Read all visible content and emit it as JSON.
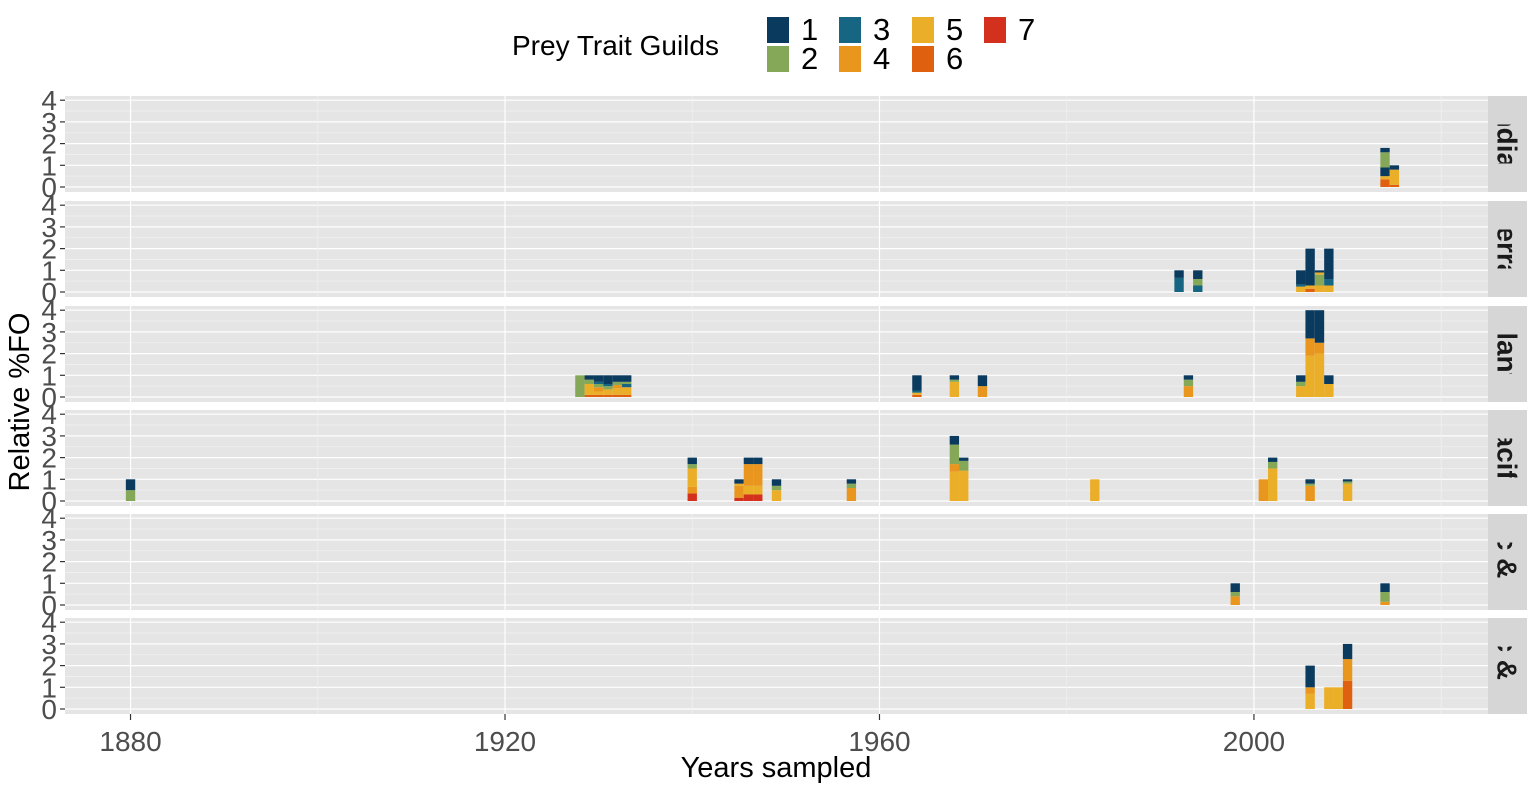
{
  "legend": {
    "title": "Prey Trait Guilds",
    "items": [
      {
        "label": "1",
        "color": "#0a3a5e"
      },
      {
        "label": "2",
        "color": "#84a857"
      },
      {
        "label": "3",
        "color": "#166582"
      },
      {
        "label": "4",
        "color": "#e8961d"
      },
      {
        "label": "5",
        "color": "#ebae28"
      },
      {
        "label": "6",
        "color": "#df600f"
      },
      {
        "label": "7",
        "color": "#d3311e"
      }
    ]
  },
  "chart_data": {
    "type": "bar",
    "stacked": true,
    "xlabel": "Years sampled",
    "ylabel": "Relative %FO",
    "xlim": [
      1873,
      2025
    ],
    "ylim": [
      0,
      4
    ],
    "xticks": [
      1880,
      1920,
      1960,
      2000
    ],
    "yticks": [
      0,
      1,
      2,
      3,
      4
    ],
    "bar_width_years": 1,
    "grid": true,
    "facets": [
      {
        "label": "Indian",
        "bars": [
          {
            "year": 2014,
            "segments": [
              {
                "guild": 6,
                "value": 0.35
              },
              {
                "guild": 5,
                "value": 0.15
              },
              {
                "guild": 1,
                "value": 0.4
              },
              {
                "guild": 2,
                "value": 0.7
              },
              {
                "guild": 1,
                "value": 0.2
              }
            ]
          },
          {
            "year": 2015,
            "segments": [
              {
                "guild": 6,
                "value": 0.1
              },
              {
                "guild": 5,
                "value": 0.7
              },
              {
                "guild": 1,
                "value": 0.2
              }
            ]
          }
        ]
      },
      {
        "label": "Mediterranean",
        "bars": [
          {
            "year": 1992,
            "segments": [
              {
                "guild": 3,
                "value": 0.65
              },
              {
                "guild": 1,
                "value": 0.35
              }
            ]
          },
          {
            "year": 1994,
            "segments": [
              {
                "guild": 3,
                "value": 0.3
              },
              {
                "guild": 2,
                "value": 0.3
              },
              {
                "guild": 1,
                "value": 0.4
              }
            ]
          },
          {
            "year": 2005,
            "segments": [
              {
                "guild": 5,
                "value": 0.25
              },
              {
                "guild": 3,
                "value": 0.1
              },
              {
                "guild": 1,
                "value": 0.65
              }
            ]
          },
          {
            "year": 2006,
            "segments": [
              {
                "guild": 6,
                "value": 0.15
              },
              {
                "guild": 5,
                "value": 0.15
              },
              {
                "guild": 1,
                "value": 1.7
              }
            ]
          },
          {
            "year": 2007,
            "segments": [
              {
                "guild": 5,
                "value": 0.3
              },
              {
                "guild": 2,
                "value": 0.5
              },
              {
                "guild": 5,
                "value": 0.1
              },
              {
                "guild": 1,
                "value": 0.1
              }
            ]
          },
          {
            "year": 2008,
            "segments": [
              {
                "guild": 5,
                "value": 0.3
              },
              {
                "guild": 3,
                "value": 0.3
              },
              {
                "guild": 1,
                "value": 1.4
              }
            ]
          }
        ]
      },
      {
        "label": "Atlantic",
        "bars": [
          {
            "year": 1928,
            "segments": [
              {
                "guild": 2,
                "value": 1.0
              }
            ]
          },
          {
            "year": 1929,
            "segments": [
              {
                "guild": 6,
                "value": 0.1
              },
              {
                "guild": 5,
                "value": 0.5
              },
              {
                "guild": 2,
                "value": 0.2
              },
              {
                "guild": 1,
                "value": 0.2
              }
            ]
          },
          {
            "year": 1930,
            "segments": [
              {
                "guild": 6,
                "value": 0.1
              },
              {
                "guild": 5,
                "value": 0.15
              },
              {
                "guild": 4,
                "value": 0.2
              },
              {
                "guild": 2,
                "value": 0.15
              },
              {
                "guild": 3,
                "value": 0.1
              },
              {
                "guild": 1,
                "value": 0.3
              }
            ]
          },
          {
            "year": 1931,
            "segments": [
              {
                "guild": 6,
                "value": 0.1
              },
              {
                "guild": 5,
                "value": 0.25
              },
              {
                "guild": 2,
                "value": 0.15
              },
              {
                "guild": 3,
                "value": 0.1
              },
              {
                "guild": 1,
                "value": 0.4
              }
            ]
          },
          {
            "year": 1932,
            "segments": [
              {
                "guild": 6,
                "value": 0.1
              },
              {
                "guild": 5,
                "value": 0.3
              },
              {
                "guild": 4,
                "value": 0.15
              },
              {
                "guild": 2,
                "value": 0.15
              },
              {
                "guild": 1,
                "value": 0.3
              }
            ]
          },
          {
            "year": 1933,
            "segments": [
              {
                "guild": 6,
                "value": 0.1
              },
              {
                "guild": 5,
                "value": 0.35
              },
              {
                "guild": 3,
                "value": 0.15
              },
              {
                "guild": 2,
                "value": 0.1
              },
              {
                "guild": 1,
                "value": 0.3
              }
            ]
          },
          {
            "year": 1964,
            "segments": [
              {
                "guild": 6,
                "value": 0.1
              },
              {
                "guild": 5,
                "value": 0.1
              },
              {
                "guild": 3,
                "value": 0.1
              },
              {
                "guild": 1,
                "value": 0.7
              }
            ]
          },
          {
            "year": 1968,
            "segments": [
              {
                "guild": 5,
                "value": 0.7
              },
              {
                "guild": 2,
                "value": 0.1
              },
              {
                "guild": 1,
                "value": 0.2
              }
            ]
          },
          {
            "year": 1971,
            "segments": [
              {
                "guild": 4,
                "value": 0.5
              },
              {
                "guild": 1,
                "value": 0.5
              }
            ]
          },
          {
            "year": 1993,
            "segments": [
              {
                "guild": 4,
                "value": 0.5
              },
              {
                "guild": 2,
                "value": 0.3
              },
              {
                "guild": 1,
                "value": 0.2
              }
            ]
          },
          {
            "year": 2005,
            "segments": [
              {
                "guild": 5,
                "value": 0.5
              },
              {
                "guild": 2,
                "value": 0.2
              },
              {
                "guild": 1,
                "value": 0.3
              }
            ]
          },
          {
            "year": 2006,
            "segments": [
              {
                "guild": 5,
                "value": 1.9
              },
              {
                "guild": 4,
                "value": 0.8
              },
              {
                "guild": 1,
                "value": 1.3
              }
            ]
          },
          {
            "year": 2007,
            "segments": [
              {
                "guild": 5,
                "value": 2.0
              },
              {
                "guild": 4,
                "value": 0.5
              },
              {
                "guild": 1,
                "value": 1.5
              }
            ]
          },
          {
            "year": 2008,
            "segments": [
              {
                "guild": 5,
                "value": 0.6
              },
              {
                "guild": 1,
                "value": 0.4
              }
            ]
          }
        ]
      },
      {
        "label": "Pacific",
        "bars": [
          {
            "year": 1880,
            "segments": [
              {
                "guild": 2,
                "value": 0.5
              },
              {
                "guild": 1,
                "value": 0.5
              }
            ]
          },
          {
            "year": 1940,
            "segments": [
              {
                "guild": 7,
                "value": 0.35
              },
              {
                "guild": 4,
                "value": 0.3
              },
              {
                "guild": 5,
                "value": 0.85
              },
              {
                "guild": 2,
                "value": 0.2
              },
              {
                "guild": 1,
                "value": 0.3
              }
            ]
          },
          {
            "year": 1945,
            "segments": [
              {
                "guild": 7,
                "value": 0.15
              },
              {
                "guild": 4,
                "value": 0.55
              },
              {
                "guild": 5,
                "value": 0.1
              },
              {
                "guild": 1,
                "value": 0.2
              }
            ]
          },
          {
            "year": 1946,
            "segments": [
              {
                "guild": 7,
                "value": 0.3
              },
              {
                "guild": 5,
                "value": 0.4
              },
              {
                "guild": 4,
                "value": 1.0
              },
              {
                "guild": 1,
                "value": 0.3
              }
            ]
          },
          {
            "year": 1947,
            "segments": [
              {
                "guild": 7,
                "value": 0.3
              },
              {
                "guild": 5,
                "value": 0.4
              },
              {
                "guild": 4,
                "value": 1.0
              },
              {
                "guild": 1,
                "value": 0.3
              }
            ]
          },
          {
            "year": 1949,
            "segments": [
              {
                "guild": 5,
                "value": 0.5
              },
              {
                "guild": 2,
                "value": 0.2
              },
              {
                "guild": 1,
                "value": 0.3
              }
            ]
          },
          {
            "year": 1957,
            "segments": [
              {
                "guild": 4,
                "value": 0.6
              },
              {
                "guild": 2,
                "value": 0.2
              },
              {
                "guild": 1,
                "value": 0.2
              }
            ]
          },
          {
            "year": 1968,
            "segments": [
              {
                "guild": 5,
                "value": 1.35
              },
              {
                "guild": 4,
                "value": 0.35
              },
              {
                "guild": 2,
                "value": 0.9
              },
              {
                "guild": 1,
                "value": 0.4
              }
            ]
          },
          {
            "year": 1969,
            "segments": [
              {
                "guild": 5,
                "value": 1.4
              },
              {
                "guild": 2,
                "value": 0.45
              },
              {
                "guild": 1,
                "value": 0.15
              }
            ]
          },
          {
            "year": 1983,
            "segments": [
              {
                "guild": 5,
                "value": 1.0
              }
            ]
          },
          {
            "year": 2001,
            "segments": [
              {
                "guild": 4,
                "value": 1.0
              }
            ]
          },
          {
            "year": 2002,
            "segments": [
              {
                "guild": 5,
                "value": 1.5
              },
              {
                "guild": 2,
                "value": 0.3
              },
              {
                "guild": 1,
                "value": 0.2
              }
            ]
          },
          {
            "year": 2006,
            "segments": [
              {
                "guild": 4,
                "value": 0.7
              },
              {
                "guild": 2,
                "value": 0.1
              },
              {
                "guild": 1,
                "value": 0.2
              }
            ]
          },
          {
            "year": 2010,
            "segments": [
              {
                "guild": 5,
                "value": 0.8
              },
              {
                "guild": 2,
                "value": 0.1
              },
              {
                "guild": 1,
                "value": 0.1
              }
            ]
          }
        ]
      },
      {
        "label": "Atlantic & Pacific",
        "bars": [
          {
            "year": 1998,
            "segments": [
              {
                "guild": 4,
                "value": 0.4
              },
              {
                "guild": 2,
                "value": 0.2
              },
              {
                "guild": 1,
                "value": 0.4
              }
            ]
          },
          {
            "year": 2014,
            "segments": [
              {
                "guild": 4,
                "value": 0.15
              },
              {
                "guild": 2,
                "value": 0.45
              },
              {
                "guild": 1,
                "value": 0.4
              }
            ]
          }
        ]
      },
      {
        "label": "Pacific & Indian",
        "bars": [
          {
            "year": 2006,
            "segments": [
              {
                "guild": 5,
                "value": 0.7
              },
              {
                "guild": 4,
                "value": 0.3
              },
              {
                "guild": 1,
                "value": 1.0
              }
            ]
          },
          {
            "year": 2008,
            "segments": [
              {
                "guild": 5,
                "value": 1.0
              }
            ]
          },
          {
            "year": 2009,
            "segments": [
              {
                "guild": 5,
                "value": 1.0
              }
            ]
          },
          {
            "year": 2010,
            "segments": [
              {
                "guild": 6,
                "value": 1.3
              },
              {
                "guild": 4,
                "value": 1.0
              },
              {
                "guild": 1,
                "value": 0.7
              }
            ]
          }
        ]
      }
    ]
  }
}
